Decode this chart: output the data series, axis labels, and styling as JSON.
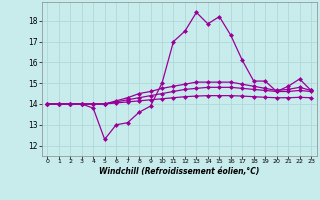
{
  "title": "",
  "xlabel": "Windchill (Refroidissement éolien,°C)",
  "ylabel": "",
  "xlim": [
    -0.5,
    23.5
  ],
  "ylim": [
    11.5,
    18.9
  ],
  "xticks": [
    0,
    1,
    2,
    3,
    4,
    5,
    6,
    7,
    8,
    9,
    10,
    11,
    12,
    13,
    14,
    15,
    16,
    17,
    18,
    19,
    20,
    21,
    22,
    23
  ],
  "yticks": [
    12,
    13,
    14,
    15,
    16,
    17,
    18
  ],
  "background_color": "#c8ecec",
  "grid_color": "#b0d8d8",
  "line_color": "#990099",
  "line_width": 0.9,
  "marker": "D",
  "marker_size": 2.0,
  "series": [
    [
      14.0,
      14.0,
      14.0,
      14.0,
      13.8,
      12.3,
      13.0,
      13.1,
      13.6,
      13.9,
      15.0,
      17.0,
      17.5,
      18.4,
      17.85,
      18.2,
      17.3,
      16.1,
      15.1,
      15.1,
      14.6,
      14.85,
      15.2,
      14.65
    ],
    [
      14.0,
      14.0,
      14.0,
      14.0,
      14.0,
      14.0,
      14.15,
      14.3,
      14.5,
      14.6,
      14.75,
      14.85,
      14.95,
      15.05,
      15.05,
      15.05,
      15.05,
      14.95,
      14.85,
      14.75,
      14.65,
      14.7,
      14.8,
      14.65
    ],
    [
      14.0,
      14.0,
      14.0,
      14.0,
      14.0,
      14.0,
      14.1,
      14.2,
      14.3,
      14.4,
      14.5,
      14.6,
      14.7,
      14.75,
      14.8,
      14.8,
      14.8,
      14.75,
      14.7,
      14.65,
      14.6,
      14.6,
      14.65,
      14.6
    ],
    [
      14.0,
      14.0,
      14.0,
      14.0,
      14.0,
      14.0,
      14.05,
      14.1,
      14.15,
      14.2,
      14.25,
      14.3,
      14.35,
      14.38,
      14.4,
      14.4,
      14.4,
      14.38,
      14.35,
      14.32,
      14.3,
      14.3,
      14.32,
      14.3
    ]
  ]
}
